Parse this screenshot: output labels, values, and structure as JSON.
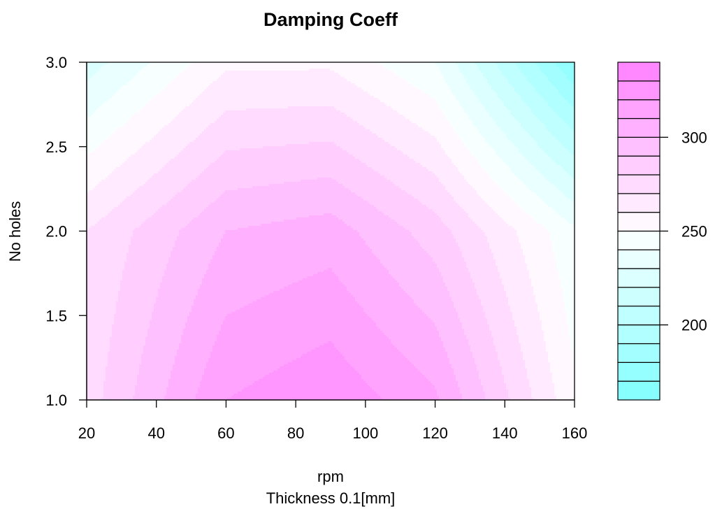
{
  "chart_data": {
    "type": "heatmap",
    "title": "Damping Coeff",
    "xlabel": "rpm",
    "sublabel": "Thickness 0.1[mm]",
    "ylabel": "No holes",
    "x_ticks": [
      "20",
      "40",
      "60",
      "80",
      "100",
      "120",
      "140",
      "160"
    ],
    "y_ticks": [
      "1.0",
      "1.5",
      "2.0",
      "2.5",
      "3.0"
    ],
    "xlim": [
      20,
      160
    ],
    "ylim": [
      1.0,
      3.0
    ],
    "x": [
      20,
      60,
      90,
      120,
      160
    ],
    "y": [
      1,
      2,
      3
    ],
    "z": [
      [
        275,
        320,
        328,
        312,
        252
      ],
      [
        270,
        300,
        305,
        285,
        242
      ],
      [
        225,
        258,
        258,
        240,
        170
      ]
    ],
    "levels": [
      160,
      170,
      180,
      190,
      200,
      210,
      220,
      230,
      240,
      250,
      260,
      270,
      280,
      290,
      300,
      310,
      320,
      330,
      340
    ],
    "colorbar_ticks": [
      "200",
      "250",
      "300"
    ],
    "colorbar_tick_values": [
      200,
      250,
      300
    ],
    "color_low": "#80ffff",
    "color_mid": "#ffffff",
    "color_high": "#ff80ff",
    "grid": false,
    "legend": "right colorbar"
  }
}
